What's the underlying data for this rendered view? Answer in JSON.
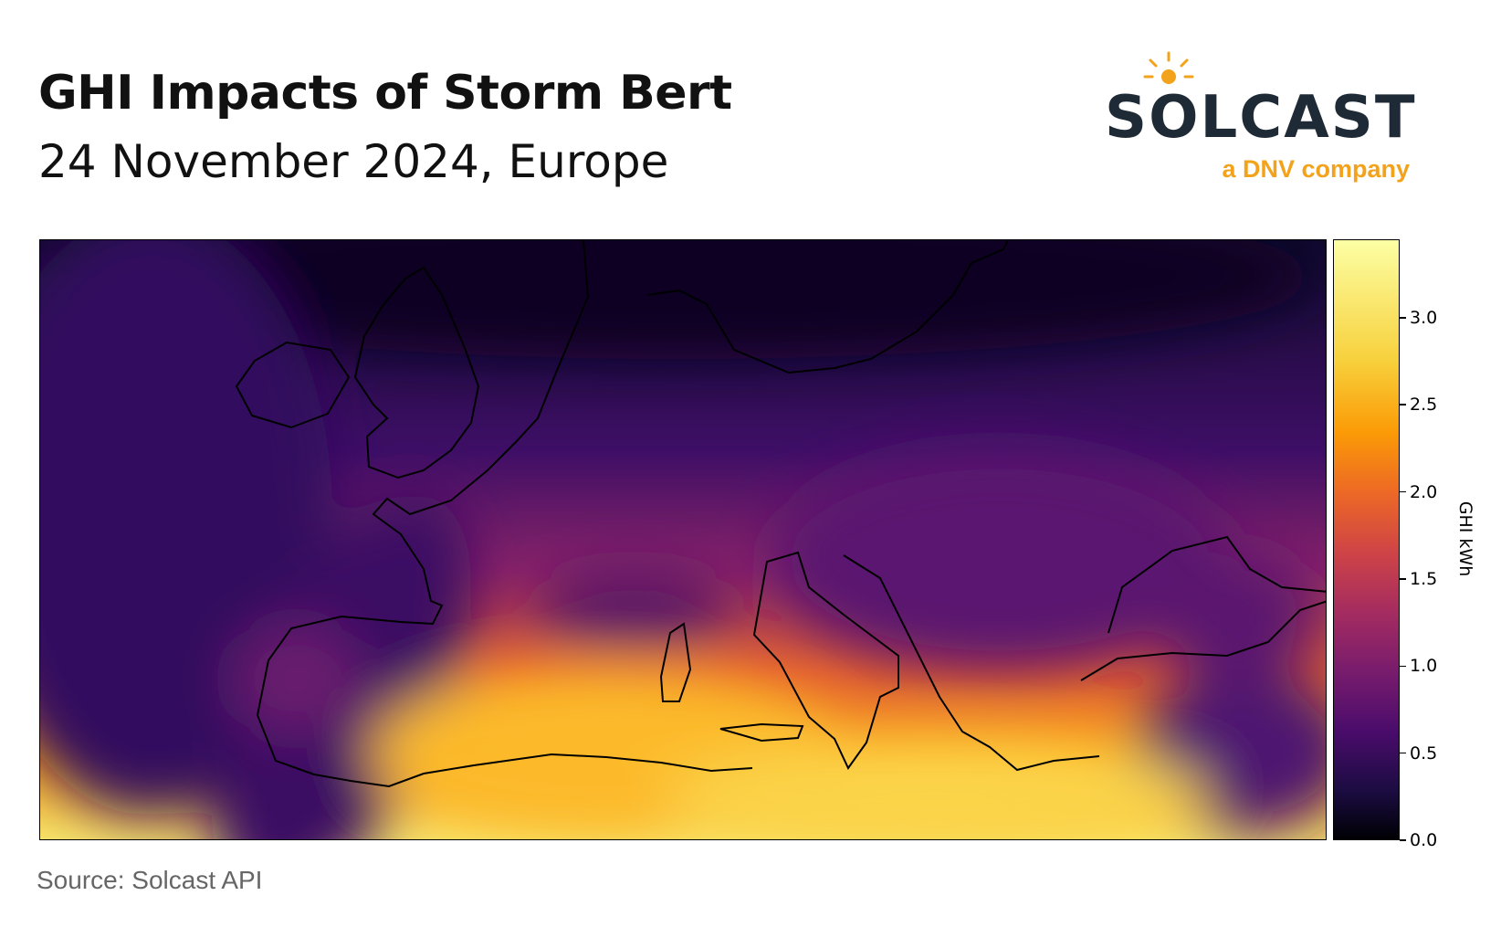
{
  "header": {
    "title": "GHI Impacts of Storm Bert",
    "subtitle": "24 November 2024, Europe"
  },
  "logo": {
    "wordmark": "SOLCAST",
    "tagline": "a DNV company",
    "brand_color": "#1e2a36",
    "accent_color": "#f3a21b"
  },
  "colorbar": {
    "label": "GHI kWh",
    "colormap": "inferno",
    "range": [
      0.0,
      3.45
    ],
    "ticks": [
      "0.0",
      "0.5",
      "1.0",
      "1.5",
      "2.0",
      "2.5",
      "3.0"
    ]
  },
  "footer": {
    "source": "Source: Solcast API"
  }
}
